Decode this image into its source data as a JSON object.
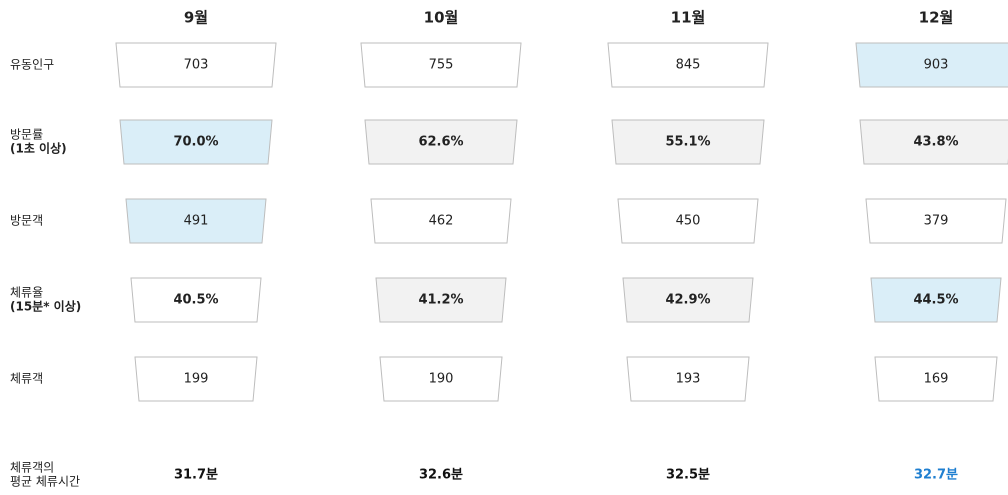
{
  "columns": [
    "9월",
    "10월",
    "11월",
    "12월"
  ],
  "rows": [
    {
      "label": [
        "유동인구"
      ],
      "bold": false,
      "cells": [
        {
          "text": "703",
          "fill": "#ffffff"
        },
        {
          "text": "755",
          "fill": "#ffffff"
        },
        {
          "text": "845",
          "fill": "#ffffff"
        },
        {
          "text": "903",
          "fill": "#daeef8"
        }
      ]
    },
    {
      "label": [
        "방문률",
        "(1초 이상)"
      ],
      "bold": true,
      "cells": [
        {
          "text": "70.0%",
          "fill": "#daeef8"
        },
        {
          "text": "62.6%",
          "fill": "#f2f2f2"
        },
        {
          "text": "55.1%",
          "fill": "#f2f2f2"
        },
        {
          "text": "43.8%",
          "fill": "#f2f2f2"
        }
      ]
    },
    {
      "label": [
        "방문객"
      ],
      "bold": false,
      "cells": [
        {
          "text": "491",
          "fill": "#daeef8"
        },
        {
          "text": "462",
          "fill": "#ffffff"
        },
        {
          "text": "450",
          "fill": "#ffffff"
        },
        {
          "text": "379",
          "fill": "#ffffff"
        }
      ]
    },
    {
      "label": [
        "체류율",
        "(15분* 이상)"
      ],
      "bold": true,
      "cells": [
        {
          "text": "40.5%",
          "fill": "#ffffff"
        },
        {
          "text": "41.2%",
          "fill": "#f2f2f2"
        },
        {
          "text": "42.9%",
          "fill": "#f2f2f2"
        },
        {
          "text": "44.5%",
          "fill": "#daeef8"
        }
      ]
    },
    {
      "label": [
        "체류객"
      ],
      "bold": false,
      "cells": [
        {
          "text": "199",
          "fill": "#ffffff"
        },
        {
          "text": "190",
          "fill": "#ffffff"
        },
        {
          "text": "193",
          "fill": "#ffffff"
        },
        {
          "text": "169",
          "fill": "#ffffff"
        }
      ]
    }
  ],
  "footer": {
    "label": [
      "체류객의",
      "평균 체류시간"
    ],
    "cells": [
      {
        "text": "31.7분",
        "color": "#111111"
      },
      {
        "text": "32.6분",
        "color": "#111111"
      },
      {
        "text": "32.5분",
        "color": "#111111"
      },
      {
        "text": "32.7분",
        "color": "#1f7fd0"
      }
    ]
  }
}
